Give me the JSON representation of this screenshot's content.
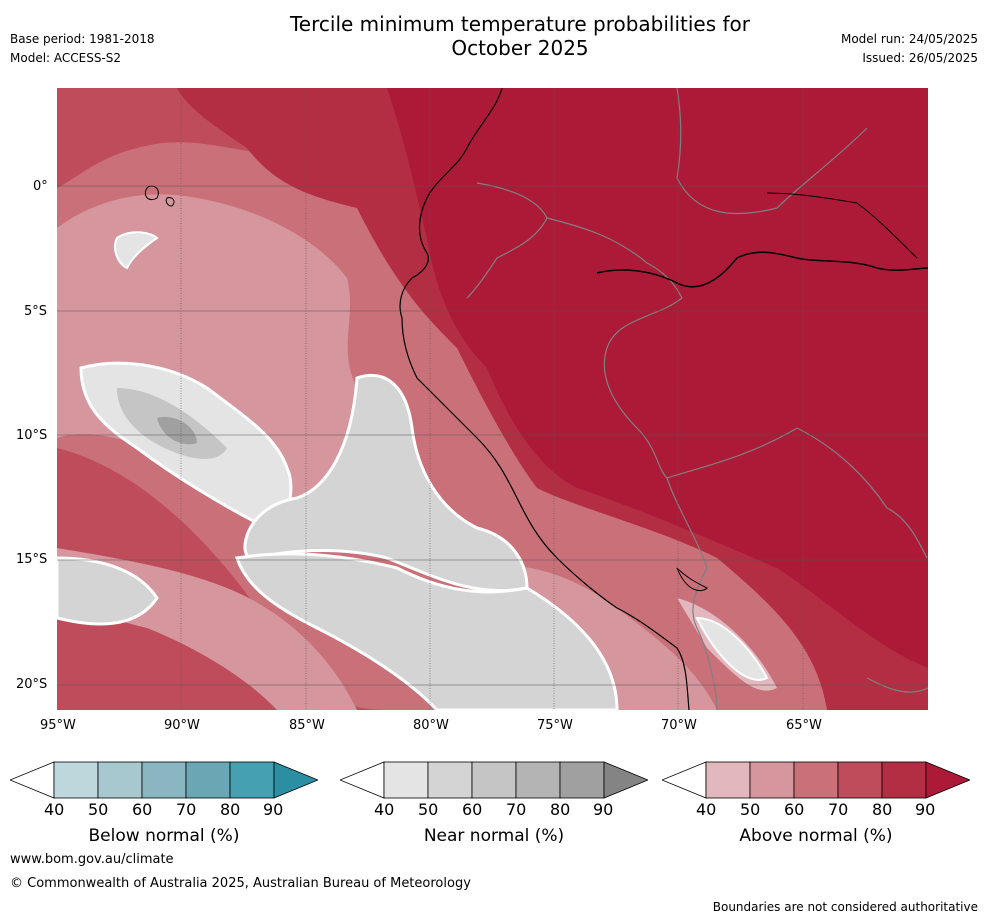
{
  "header": {
    "title_line1": "Tercile minimum temperature probabilities for",
    "title_line2": "October 2025",
    "base_period": "Base period: 1981-2018",
    "model": "Model: ACCESS-S2",
    "model_run": "Model run: 24/05/2025",
    "issued": "Issued: 26/05/2025"
  },
  "map": {
    "lat_labels": [
      "0°",
      "5°S",
      "10°S",
      "15°S",
      "20°S"
    ],
    "lon_labels": [
      "95°W",
      "90°W",
      "85°W",
      "80°W",
      "75°W",
      "70°W",
      "65°W"
    ]
  },
  "legend": {
    "below": {
      "title": "Below normal (%)",
      "ticks": [
        "40",
        "50",
        "60",
        "70",
        "80",
        "90"
      ],
      "colors": [
        "#ffffff",
        "#bdd7dd",
        "#a7c8cf",
        "#8ab6c1",
        "#6aa7b5",
        "#45a1b1",
        "#2b8ea3"
      ]
    },
    "near": {
      "title": "Near normal (%)",
      "ticks": [
        "40",
        "50",
        "60",
        "70",
        "80",
        "90"
      ],
      "colors": [
        "#ffffff",
        "#e4e4e4",
        "#d4d4d4",
        "#c5c5c5",
        "#b4b4b4",
        "#a0a0a0",
        "#848484"
      ]
    },
    "above": {
      "title": "Above normal (%)",
      "ticks": [
        "40",
        "50",
        "60",
        "70",
        "80",
        "90"
      ],
      "colors": [
        "#ffffff",
        "#e3b7be",
        "#d5969e",
        "#c97079",
        "#bf4c5a",
        "#b32e42",
        "#ac1a37"
      ]
    }
  },
  "footer": {
    "website": "www.bom.gov.au/climate",
    "copyright": "© Commonwealth of Australia 2025, Australian Bureau of Meteorology",
    "disclaimer": "Boundaries are not considered authoritative"
  }
}
